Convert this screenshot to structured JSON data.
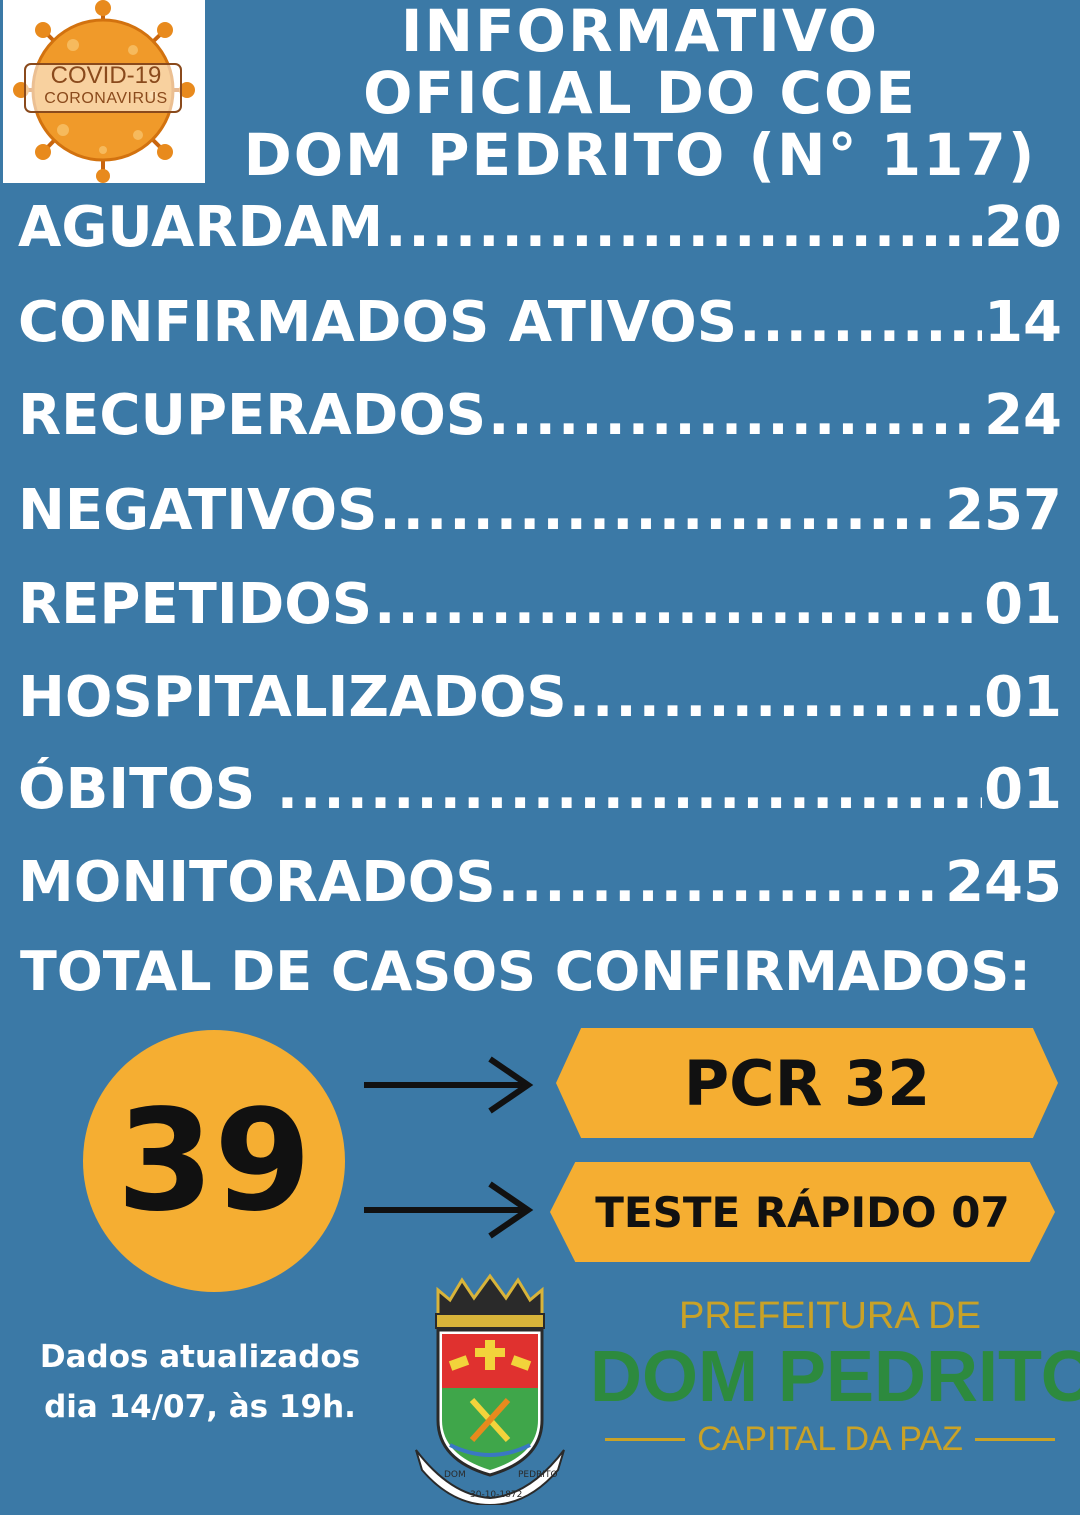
{
  "logo": {
    "line1": "COVID-19",
    "line2": "CORONAVIRUS",
    "virus_color": "#e88a1d"
  },
  "title": {
    "line1": "INFORMATIVO",
    "line2": "OFICIAL DO COE",
    "line3": "DOM PEDRITO (N° 117)"
  },
  "stats": [
    {
      "label": "AGUARDAM",
      "value": "20"
    },
    {
      "label": "CONFIRMADOS ATIVOS",
      "value": "14"
    },
    {
      "label": "RECUPERADOS",
      "value": "24"
    },
    {
      "label": "NEGATIVOS",
      "value": "257"
    },
    {
      "label": "REPETIDOS",
      "value": "01"
    },
    {
      "label": "HOSPITALIZADOS",
      "value": "01"
    },
    {
      "label": "ÓBITOS ",
      "value": "01"
    },
    {
      "label": "MONITORADOS",
      "value": "245"
    }
  ],
  "total": {
    "label": "TOTAL DE CASOS CONFIRMADOS:",
    "value": "39",
    "pcr": "PCR 32",
    "rapid": "TESTE RÁPIDO 07"
  },
  "footer": {
    "updated_line1": "Dados atualizados",
    "updated_line2": "dia 14/07, às 19h.",
    "coat_banner_left": "DOM",
    "coat_banner_center": "30-10-1872",
    "coat_banner_right": "PEDRITO",
    "pref_line1": "PREFEITURA DE",
    "pref_line2": "DOM PEDRITO",
    "pref_line3": "CAPITAL DA PAZ"
  },
  "colors": {
    "background": "#3b79a6",
    "accent": "#f5ae32",
    "text": "#ffffff",
    "brand_green": "#2d8a3e",
    "brand_gold": "#c9a227"
  }
}
